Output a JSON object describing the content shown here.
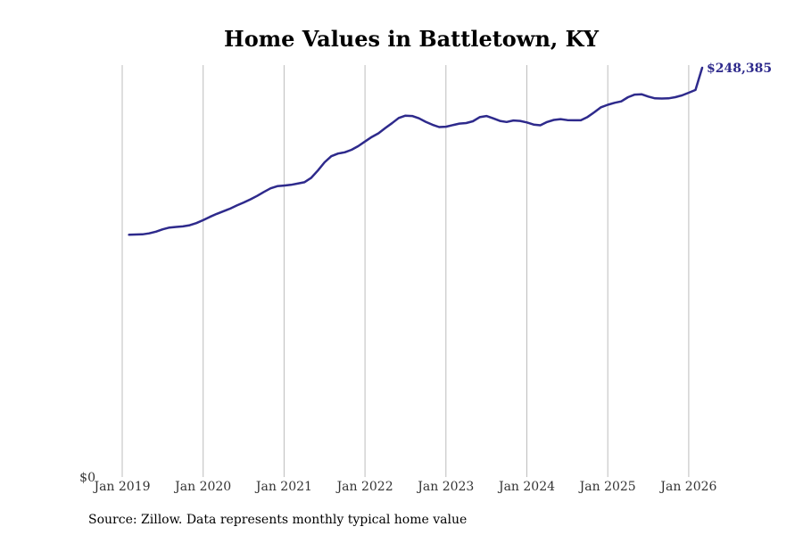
{
  "chart_data": {
    "type": "line",
    "title": "Home Values in Battletown, KY",
    "xlabel": "",
    "ylabel": "",
    "x_ticks": [
      "Jan 2019",
      "Jan 2020",
      "Jan 2021",
      "Jan 2022",
      "Jan 2023",
      "Jan 2024",
      "Jan 2025",
      "Jan 2026"
    ],
    "y_tick_label": "$0",
    "ylim": [
      0,
      250000
    ],
    "grid": "vertical",
    "series": [
      {
        "name": "Typical home value",
        "color": "#2e2a8c",
        "start": "2019-02",
        "values": [
          147000,
          147200,
          147300,
          147900,
          148900,
          150300,
          151400,
          151800,
          152100,
          152800,
          154100,
          155900,
          157900,
          159700,
          161300,
          162900,
          164800,
          166600,
          168500,
          170600,
          173000,
          175200,
          176500,
          176900,
          177300,
          178100,
          178900,
          181500,
          186000,
          191000,
          194700,
          196300,
          197100,
          198600,
          200800,
          203600,
          206400,
          208600,
          211800,
          214700,
          217900,
          219300,
          219100,
          217700,
          215600,
          213800,
          212400,
          212600,
          213600,
          214500,
          214800,
          215900,
          218400,
          219100,
          217700,
          216100,
          215500,
          216400,
          216100,
          215200,
          213900,
          213500,
          215500,
          216700,
          217200,
          216600,
          216500,
          216500,
          218500,
          221400,
          224400,
          225900,
          227100,
          228000,
          230500,
          232100,
          232300,
          230900,
          229800,
          229700,
          229800,
          230500,
          231600,
          233200,
          234900,
          248385
        ]
      }
    ],
    "end_label": "$248,385",
    "source": "Source: Zillow. Data represents monthly typical home value"
  }
}
